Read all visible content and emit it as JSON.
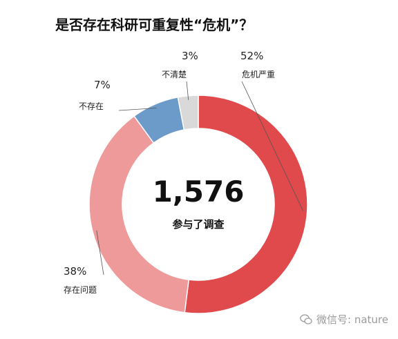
{
  "chart_data": {
    "type": "pie",
    "title": "是否存在科研可重复性“危机”？",
    "center_value": "1,576",
    "center_label": "参与了调查",
    "slices": [
      {
        "label": "危机严重",
        "value": 52,
        "value_label": "52%",
        "color": "#e04a4c"
      },
      {
        "label": "存在问题",
        "value": 38,
        "value_label": "38%",
        "color": "#ee9a9b"
      },
      {
        "label": "不存在",
        "value": 7,
        "value_label": "7%",
        "color": "#6d9bc9"
      },
      {
        "label": "不清楚",
        "value": 3,
        "value_label": "3%",
        "color": "#d9d9d9"
      }
    ]
  },
  "watermark": {
    "text": "微信号: nature",
    "icon": "wechat-icon"
  }
}
